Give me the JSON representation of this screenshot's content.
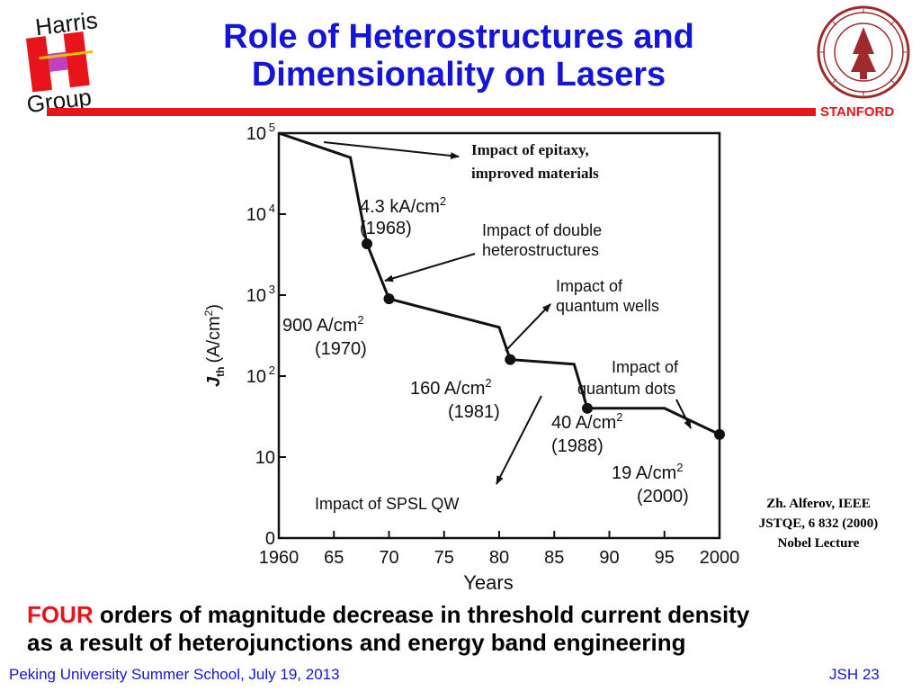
{
  "slide": {
    "title_line1": "Role of Heterostructures and",
    "title_line2": "Dimensionality on Lasers",
    "logo_left_lines": [
      "Harris",
      "Group"
    ],
    "logo_right_label": "STANFORD",
    "citation_lines": [
      "Zh. Alferov, IEEE",
      "JSTQE, 6 832  (2000)",
      "Nobel Lecture"
    ],
    "bottom_highlight": "FOUR",
    "bottom_rest_line1": " orders of magnitude decrease in threshold current density",
    "bottom_line2": "as a result of heterojunctions and energy band engineering",
    "footer_left": "Peking University Summer School, July 19, 2013",
    "footer_right": "JSH 23",
    "colors": {
      "title_blue": "#1515d8",
      "accent_red": "#e8141c",
      "stanford_red": "#9e2a2b"
    }
  },
  "chart_data": {
    "type": "line",
    "xlabel": "Years",
    "ylabel": "J_th (A/cm²)",
    "ylabel_main": "J",
    "ylabel_sub": "th",
    "ylabel_unit": "(A/cm",
    "ylabel_sup": "2",
    "ylabel_close": ")",
    "x_ticks": [
      "1960",
      "65",
      "70",
      "75",
      "80",
      "85",
      "90",
      "95",
      "2000"
    ],
    "y_ticks": [
      {
        "base": "0",
        "exp": ""
      },
      {
        "base": "10",
        "exp": ""
      },
      {
        "base": "10",
        "exp": "2"
      },
      {
        "base": "10",
        "exp": "3"
      },
      {
        "base": "10",
        "exp": "4"
      },
      {
        "base": "10",
        "exp": "5"
      }
    ],
    "xlim": [
      1960,
      2000
    ],
    "series": [
      {
        "x": [
          1960,
          1966.5,
          1968,
          1970,
          1980,
          1981,
          1986.8,
          1988,
          1995,
          2000
        ],
        "y": [
          100000,
          50000,
          4300,
          900,
          400,
          160,
          140,
          40,
          40,
          19
        ]
      }
    ],
    "markers": [
      {
        "x": 1968,
        "y": 4300
      },
      {
        "x": 1970,
        "y": 900
      },
      {
        "x": 1981,
        "y": 160
      },
      {
        "x": 1988,
        "y": 40
      },
      {
        "x": 2000,
        "y": 19
      }
    ],
    "annotations": {
      "ann_4300_a": "4.3 kA/cm",
      "ann_4300_sup": "2",
      "ann_4300_b": "(1968)",
      "ann_900_a": "900 A/cm",
      "ann_900_sup": "2",
      "ann_900_b": "(1970)",
      "ann_160_a": "160 A/cm",
      "ann_160_sup": "2",
      "ann_160_b": "(1981)",
      "ann_40_a": "40 A/cm",
      "ann_40_sup": "2",
      "ann_40_b": "(1988)",
      "ann_19_a": "19 A/cm",
      "ann_19_sup": "2",
      "ann_19_b": "(2000)",
      "dh_a": "Impact of double",
      "dh_b": "heterostructures",
      "qw_a": "Impact of",
      "qw_b": "quantum wells",
      "qd_a": "Impact of",
      "qd_b": "quantum dots",
      "spsl": "Impact of  SPSL QW",
      "epi_a": "Impact of epitaxy,",
      "epi_b": "improved materials"
    }
  }
}
